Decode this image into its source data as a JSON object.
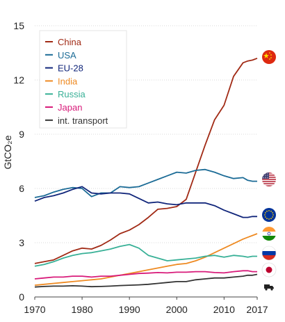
{
  "chart_data": {
    "type": "line",
    "ylabel": "GtCO₂e",
    "xlim": [
      1970,
      2017
    ],
    "ylim": [
      0,
      15
    ],
    "x_ticks": [
      "1970",
      "1980",
      "1990",
      "2000",
      "2010",
      "2017"
    ],
    "y_ticks": [
      "0",
      "3",
      "6",
      "9",
      "12",
      "15"
    ],
    "grid": "horizontal",
    "legend_position": "top-left",
    "x": [
      1970,
      1972,
      1974,
      1976,
      1978,
      1980,
      1982,
      1984,
      1986,
      1988,
      1990,
      1992,
      1994,
      1996,
      1998,
      2000,
      2002,
      2004,
      2006,
      2008,
      2010,
      2012,
      2014,
      2015,
      2016,
      2017
    ],
    "series": [
      {
        "name": "China",
        "color": "#a12a15",
        "values": [
          1.85,
          1.95,
          2.05,
          2.3,
          2.55,
          2.7,
          2.65,
          2.85,
          3.15,
          3.5,
          3.7,
          4.0,
          4.4,
          4.85,
          4.9,
          5.0,
          5.4,
          6.9,
          8.4,
          9.8,
          10.6,
          12.2,
          12.95,
          13.05,
          13.1,
          13.2
        ]
      },
      {
        "name": "USA",
        "color": "#1b6b96",
        "values": [
          5.5,
          5.6,
          5.8,
          5.95,
          6.05,
          6.0,
          5.55,
          5.75,
          5.75,
          6.1,
          6.05,
          6.1,
          6.3,
          6.5,
          6.7,
          6.9,
          6.85,
          7.0,
          7.05,
          6.9,
          6.7,
          6.55,
          6.6,
          6.45,
          6.4,
          6.4
        ]
      },
      {
        "name": "EU-28",
        "color": "#10257a",
        "values": [
          5.3,
          5.5,
          5.6,
          5.75,
          5.95,
          6.1,
          5.75,
          5.7,
          5.75,
          5.75,
          5.7,
          5.45,
          5.2,
          5.25,
          5.15,
          5.1,
          5.2,
          5.2,
          5.2,
          5.05,
          4.8,
          4.6,
          4.4,
          4.4,
          4.45,
          4.45
        ]
      },
      {
        "name": "India",
        "color": "#ee8a22",
        "values": [
          0.65,
          0.7,
          0.75,
          0.8,
          0.85,
          0.9,
          0.95,
          1.0,
          1.1,
          1.2,
          1.3,
          1.4,
          1.5,
          1.6,
          1.7,
          1.8,
          1.85,
          2.0,
          2.2,
          2.45,
          2.7,
          2.95,
          3.2,
          3.3,
          3.4,
          3.5
        ]
      },
      {
        "name": "Russia",
        "color": "#37b096",
        "values": [
          1.7,
          1.8,
          1.95,
          2.15,
          2.3,
          2.4,
          2.45,
          2.55,
          2.65,
          2.8,
          2.9,
          2.7,
          2.3,
          2.15,
          2.0,
          2.05,
          2.1,
          2.15,
          2.25,
          2.3,
          2.2,
          2.3,
          2.25,
          2.2,
          2.25,
          2.25
        ]
      },
      {
        "name": "Japan",
        "color": "#d81b7a",
        "values": [
          1.0,
          1.05,
          1.1,
          1.1,
          1.15,
          1.15,
          1.1,
          1.15,
          1.15,
          1.2,
          1.25,
          1.3,
          1.32,
          1.35,
          1.33,
          1.37,
          1.37,
          1.4,
          1.4,
          1.35,
          1.33,
          1.4,
          1.45,
          1.45,
          1.4,
          1.4
        ]
      },
      {
        "name": "int. transport",
        "color": "#333333",
        "values": [
          0.55,
          0.58,
          0.6,
          0.6,
          0.62,
          0.6,
          0.57,
          0.58,
          0.6,
          0.63,
          0.65,
          0.67,
          0.7,
          0.75,
          0.8,
          0.85,
          0.85,
          0.95,
          1.0,
          1.05,
          1.05,
          1.1,
          1.15,
          1.2,
          1.2,
          1.25
        ]
      }
    ],
    "end_icons": [
      {
        "series": "China",
        "icon": "china-flag-icon"
      },
      {
        "series": "USA",
        "icon": "usa-flag-icon"
      },
      {
        "series": "EU-28",
        "icon": "eu-flag-icon"
      },
      {
        "series": "India",
        "icon": "india-flag-icon"
      },
      {
        "series": "Russia",
        "icon": "russia-flag-icon"
      },
      {
        "series": "Japan",
        "icon": "japan-flag-icon"
      },
      {
        "series": "int. transport",
        "icon": "truck-icon"
      }
    ]
  }
}
